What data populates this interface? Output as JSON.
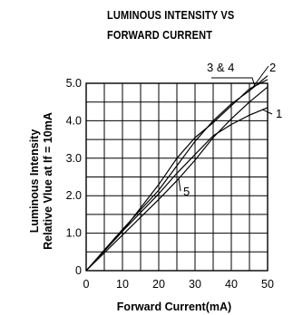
{
  "chart_data": {
    "type": "line",
    "title_lines": [
      "LUMINOUS INTENSITY VS",
      "FORWARD CURRENT"
    ],
    "xlabel": "Forward Current(mA)",
    "ylabel_lines": [
      "Luminous Intensity",
      "Relative Vlue at If = 10mA"
    ],
    "xlim": [
      0,
      50
    ],
    "ylim": [
      0,
      5
    ],
    "x_ticks": [
      0,
      10,
      20,
      30,
      40,
      50
    ],
    "x_tick_labels": [
      "0",
      "10",
      "20",
      "30",
      "40",
      "50"
    ],
    "y_ticks": [
      0,
      1,
      2,
      3,
      4,
      5
    ],
    "y_tick_labels": [
      "0",
      "1.0",
      "2.0",
      "3.0",
      "4.0",
      "5.0"
    ],
    "grid": true,
    "grid_x_step": 5,
    "grid_y_step": 0.5,
    "series": [
      {
        "name": "1",
        "x": [
          0,
          10,
          20,
          25,
          30,
          35,
          40,
          45,
          50
        ],
        "y": [
          0,
          1.05,
          2.05,
          2.6,
          3.1,
          3.6,
          3.9,
          4.15,
          4.35
        ]
      },
      {
        "name": "2",
        "x": [
          0,
          10,
          20,
          25,
          30,
          35,
          40,
          45,
          50
        ],
        "y": [
          0,
          1.1,
          2.15,
          2.8,
          3.45,
          4.0,
          4.45,
          4.8,
          5.2
        ]
      },
      {
        "name": "3 & 4",
        "x": [
          0,
          10,
          20,
          25,
          30,
          35,
          40,
          45,
          50
        ],
        "y": [
          0,
          1.05,
          2.3,
          3.0,
          3.55,
          3.95,
          4.4,
          4.85,
          5.1
        ]
      },
      {
        "name": "5",
        "x": [
          0,
          10,
          20,
          25,
          30,
          35,
          40,
          45,
          50
        ],
        "y": [
          0,
          0.95,
          1.9,
          2.4,
          2.95,
          3.55,
          4.05,
          4.5,
          4.9
        ]
      }
    ]
  }
}
